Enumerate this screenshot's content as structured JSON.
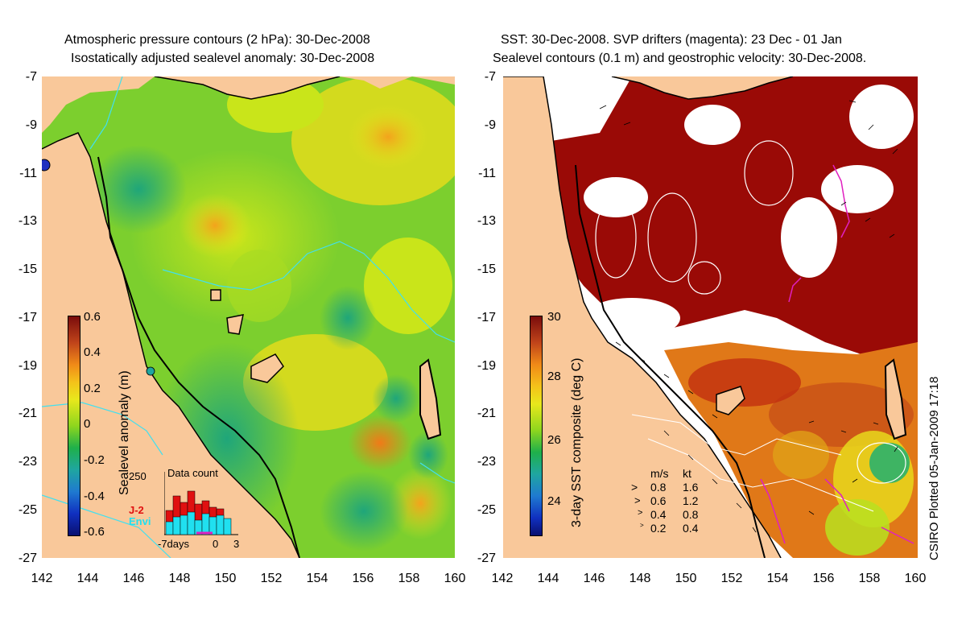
{
  "left_panel": {
    "title_line1": "Atmospheric pressure contours (2 hPa): 30-Dec-2008",
    "title_line2": "Isostatically adjusted sealevel anomaly: 30-Dec-2008",
    "colorbar_label": "Sealevel anomaly (m)",
    "colorbar_ticks": [
      "0.6",
      "0.4",
      "0.2",
      "0",
      "-0.2",
      "-0.4",
      "-0.6"
    ],
    "inset": {
      "title": "Data count",
      "ymax": "250",
      "legend_j2": "J-2",
      "legend_envi": "Envi",
      "xlabel_start": "-7days",
      "xlabel_zero": "0",
      "xlabel_end": "3",
      "j2_color": "#e01010",
      "envi_color": "#20e0f0"
    }
  },
  "right_panel": {
    "title_line1": "SST: 30-Dec-2008. SVP drifters (magenta): 23 Dec - 01 Jan",
    "title_line2": "Sealevel contours (0.1 m) and geostrophic velocity: 30-Dec-2008.",
    "colorbar_label": "3-day SST composite (deg C)",
    "colorbar_ticks": [
      "30",
      "28",
      "26",
      "24"
    ],
    "velocity_legend": {
      "header_ms": "m/s",
      "header_kt": "kt",
      "rows": [
        {
          "ms": "0.8",
          "kt": "1.6"
        },
        {
          "ms": "0.6",
          "kt": "1.2"
        },
        {
          "ms": "0.4",
          "kt": "0.8"
        },
        {
          "ms": "0.2",
          "kt": "0.4"
        }
      ]
    }
  },
  "axes": {
    "lat_ticks": [
      "-7",
      "-9",
      "-11",
      "-13",
      "-15",
      "-17",
      "-19",
      "-21",
      "-23",
      "-25",
      "-27"
    ],
    "lon_ticks": [
      "142",
      "144",
      "146",
      "148",
      "150",
      "152",
      "154",
      "156",
      "158",
      "160"
    ]
  },
  "credit": "CSIRO Plotted 05-Jan-2009 17:18",
  "colors": {
    "land": "#f9c89a",
    "drifter": "#e020c0",
    "coast": "#000000"
  }
}
